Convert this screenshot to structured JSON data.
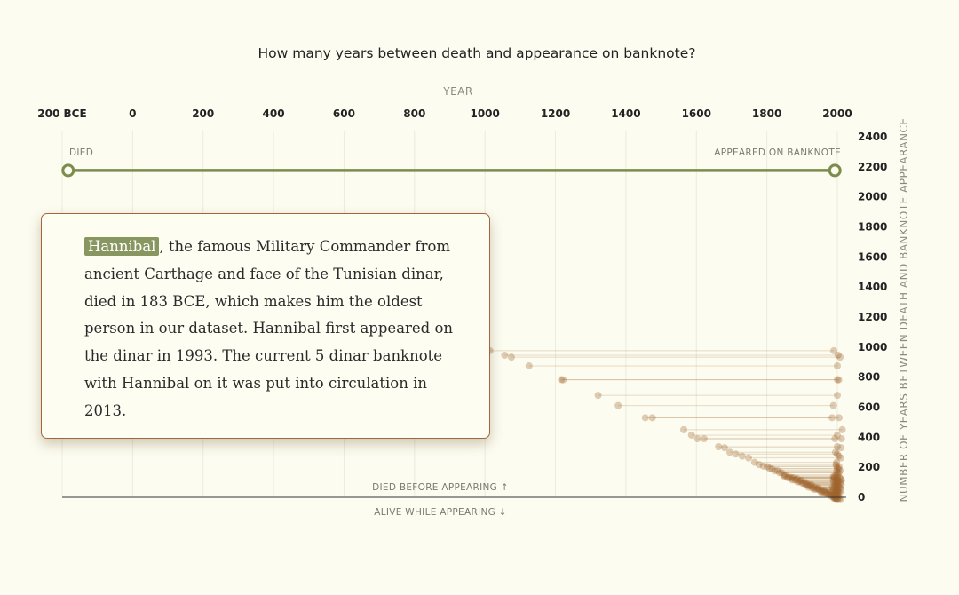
{
  "chart_data": {
    "type": "scatter",
    "title": "How many years between death and appearance on banknote?",
    "x_axis": {
      "label": "YEAR",
      "range": [
        -200,
        2000
      ],
      "ticks": [
        "200 BCE",
        "0",
        "200",
        "400",
        "600",
        "800",
        "1000",
        "1200",
        "1400",
        "1600",
        "1800",
        "2000"
      ]
    },
    "y_axis": {
      "label": "NUMBER OF YEARS BETWEEN DEATH AND BANKNOTE APPEARANCE",
      "range": [
        0,
        2400
      ],
      "ticks": [
        "2400",
        "2200",
        "2000",
        "1800",
        "1600",
        "1400",
        "1200",
        "1000",
        "800",
        "600",
        "400",
        "200",
        "0"
      ]
    },
    "labels": {
      "died": "DIED",
      "appeared": "APPEARED ON BANKNOTE",
      "died_before": "DIED BEFORE APPEARING ↑",
      "alive_while": "ALIVE WHILE APPEARING ↓"
    },
    "colors": {
      "highlight": "#7c8c4c",
      "points": "#a0622a",
      "tooltip_border": "#a0673a"
    },
    "highlight": {
      "name": "Hannibal",
      "died": -183,
      "appeared": 1993,
      "gap": 2176
    },
    "points": [
      {
        "died": 1014,
        "appeared": 1990,
        "gap": 976
      },
      {
        "died": 1056,
        "appeared": 2002,
        "gap": 946
      },
      {
        "died": 1075,
        "appeared": 2008,
        "gap": 933
      },
      {
        "died": 1125,
        "appeared": 2000,
        "gap": 875
      },
      {
        "died": 1217,
        "appeared": 2000,
        "gap": 783
      },
      {
        "died": 1222,
        "appeared": 2004,
        "gap": 782
      },
      {
        "died": 1321,
        "appeared": 2000,
        "gap": 679
      },
      {
        "died": 1378,
        "appeared": 1989,
        "gap": 611
      },
      {
        "died": 1455,
        "appeared": 1985,
        "gap": 530
      },
      {
        "died": 1475,
        "appeared": 2005,
        "gap": 530
      },
      {
        "died": 1564,
        "appeared": 2014,
        "gap": 450
      },
      {
        "died": 1586,
        "appeared": 2000,
        "gap": 414
      },
      {
        "died": 1603,
        "appeared": 1993,
        "gap": 390
      },
      {
        "died": 1622,
        "appeared": 2012,
        "gap": 390
      },
      {
        "died": 1663,
        "appeared": 2000,
        "gap": 337
      },
      {
        "died": 1680,
        "appeared": 2010,
        "gap": 330
      },
      {
        "died": 1695,
        "appeared": 1995,
        "gap": 300
      },
      {
        "died": 1712,
        "appeared": 2000,
        "gap": 288
      },
      {
        "died": 1730,
        "appeared": 2004,
        "gap": 274
      },
      {
        "died": 1748,
        "appeared": 2010,
        "gap": 262
      },
      {
        "died": 1765,
        "appeared": 1998,
        "gap": 233
      },
      {
        "died": 1778,
        "appeared": 1996,
        "gap": 218
      },
      {
        "died": 1790,
        "appeared": 1998,
        "gap": 208
      },
      {
        "died": 1801,
        "appeared": 2005,
        "gap": 204
      },
      {
        "died": 1808,
        "appeared": 2000,
        "gap": 192
      },
      {
        "died": 1815,
        "appeared": 2004,
        "gap": 189
      },
      {
        "died": 1822,
        "appeared": 1998,
        "gap": 176
      },
      {
        "died": 1830,
        "appeared": 2008,
        "gap": 178
      },
      {
        "died": 1836,
        "appeared": 2000,
        "gap": 164
      },
      {
        "died": 1842,
        "appeared": 2005,
        "gap": 163
      },
      {
        "died": 1848,
        "appeared": 1996,
        "gap": 148
      },
      {
        "died": 1853,
        "appeared": 2001,
        "gap": 148
      },
      {
        "died": 1858,
        "appeared": 1990,
        "gap": 132
      },
      {
        "died": 1862,
        "appeared": 1992,
        "gap": 130
      },
      {
        "died": 1866,
        "appeared": 2000,
        "gap": 134
      },
      {
        "died": 1870,
        "appeared": 1997,
        "gap": 127
      },
      {
        "died": 1875,
        "appeared": 2006,
        "gap": 131
      },
      {
        "died": 1880,
        "appeared": 1995,
        "gap": 115
      },
      {
        "died": 1884,
        "appeared": 2001,
        "gap": 117
      },
      {
        "died": 1888,
        "appeared": 1990,
        "gap": 102
      },
      {
        "died": 1892,
        "appeared": 1999,
        "gap": 107
      },
      {
        "died": 1896,
        "appeared": 2004,
        "gap": 108
      },
      {
        "died": 1900,
        "appeared": 1994,
        "gap": 94
      },
      {
        "died": 1904,
        "appeared": 2000,
        "gap": 96
      },
      {
        "died": 1908,
        "appeared": 1998,
        "gap": 90
      },
      {
        "died": 1912,
        "appeared": 1993,
        "gap": 81
      },
      {
        "died": 1916,
        "appeared": 2003,
        "gap": 87
      },
      {
        "died": 1920,
        "appeared": 1996,
        "gap": 76
      },
      {
        "died": 1924,
        "appeared": 2001,
        "gap": 77
      },
      {
        "died": 1928,
        "appeared": 1990,
        "gap": 62
      },
      {
        "died": 1932,
        "appeared": 1999,
        "gap": 67
      },
      {
        "died": 1936,
        "appeared": 2005,
        "gap": 69
      },
      {
        "died": 1940,
        "appeared": 1994,
        "gap": 54
      },
      {
        "died": 1944,
        "appeared": 2000,
        "gap": 56
      },
      {
        "died": 1948,
        "appeared": 1997,
        "gap": 49
      },
      {
        "died": 1952,
        "appeared": 2002,
        "gap": 50
      },
      {
        "died": 1956,
        "appeared": 1996,
        "gap": 40
      },
      {
        "died": 1960,
        "appeared": 2000,
        "gap": 40
      },
      {
        "died": 1964,
        "appeared": 1994,
        "gap": 30
      },
      {
        "died": 1968,
        "appeared": 2003,
        "gap": 35
      },
      {
        "died": 1972,
        "appeared": 1998,
        "gap": 26
      },
      {
        "died": 1976,
        "appeared": 2001,
        "gap": 25
      },
      {
        "died": 1980,
        "appeared": 1996,
        "gap": 16
      },
      {
        "died": 1985,
        "appeared": 2000,
        "gap": 15
      },
      {
        "died": 1990,
        "appeared": 1998,
        "gap": 8
      },
      {
        "died": 1995,
        "appeared": 2003,
        "gap": 8
      },
      {
        "died": 1850,
        "appeared": 1989,
        "gap": 139
      },
      {
        "died": 1872,
        "appeared": 1988,
        "gap": 116
      },
      {
        "died": 1886,
        "appeared": 2010,
        "gap": 124
      },
      {
        "died": 1898,
        "appeared": 2012,
        "gap": 114
      },
      {
        "died": 1910,
        "appeared": 2009,
        "gap": 99
      },
      {
        "died": 1918,
        "appeared": 1986,
        "gap": 68
      },
      {
        "died": 1926,
        "appeared": 2011,
        "gap": 85
      },
      {
        "died": 1934,
        "appeared": 1988,
        "gap": 54
      },
      {
        "died": 1946,
        "appeared": 2008,
        "gap": 62
      },
      {
        "died": 1954,
        "appeared": 1987,
        "gap": 33
      },
      {
        "died": 1962,
        "appeared": 2010,
        "gap": 48
      },
      {
        "died": 1970,
        "appeared": 1992,
        "gap": 22
      },
      {
        "died": 1978,
        "appeared": 2007,
        "gap": 29
      },
      {
        "died": 1982,
        "appeared": 1990,
        "gap": 8
      },
      {
        "died": 1993,
        "appeared": 1991,
        "gap": -2
      },
      {
        "died": 1997,
        "appeared": 1990,
        "gap": -7
      },
      {
        "died": 2001,
        "appeared": 1994,
        "gap": -7
      },
      {
        "died": 2005,
        "appeared": 1996,
        "gap": -9
      },
      {
        "died": 2010,
        "appeared": 2000,
        "gap": -10
      }
    ]
  },
  "tooltip": {
    "name": "Hannibal",
    "text": ", the famous Military Commander from ancient Carthage and face of the Tunisian dinar, died in 183 BCE, which makes him the oldest person in our dataset. Hannibal first appeared on the dinar in 1993. The current 5 dinar banknote with Hannibal on it was put into circulation in 2013."
  }
}
